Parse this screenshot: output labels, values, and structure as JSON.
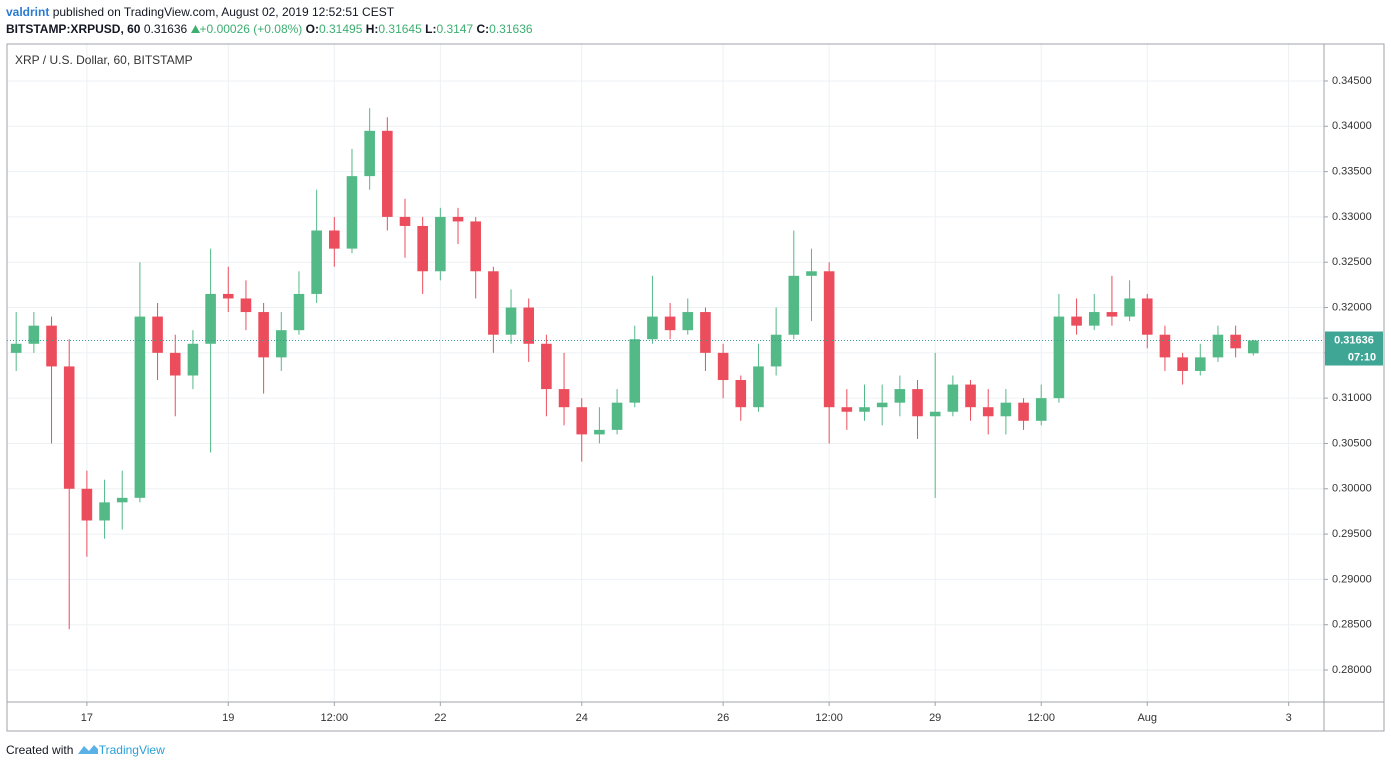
{
  "header": {
    "author": "valdrint",
    "published": "published on TradingView.com, August 02, 2019 12:52:51 CEST",
    "symbol": "BITSTAMP:XRPUSD, 60",
    "change": "+0.00026 (+0.08%)",
    "o_label": "O:",
    "h_label": "H:",
    "l_label": "L:",
    "c_label": "C:"
  },
  "chart_data": {
    "type": "candlestick",
    "title": "XRP / U.S. Dollar, 60, BITSTAMP",
    "countdown": "07:10",
    "up_color": "#53b987",
    "down_color": "#eb4d5c",
    "grid": true,
    "x": [
      16.0,
      16.25,
      16.5,
      16.75,
      17.0,
      17.25,
      17.5,
      17.75,
      18.0,
      18.25,
      18.5,
      18.75,
      19.0,
      19.25,
      19.5,
      19.75,
      20.0,
      20.25,
      20.5,
      20.75,
      21.0,
      21.25,
      21.5,
      21.75,
      22.0,
      22.25,
      22.5,
      22.75,
      23.0,
      23.25,
      23.5,
      23.75,
      24.0,
      24.25,
      24.5,
      24.75,
      25.0,
      25.25,
      25.5,
      25.75,
      26.0,
      26.25,
      26.5,
      26.75,
      27.0,
      27.25,
      27.5,
      27.75,
      28.0,
      28.25,
      28.5,
      28.75,
      29.0,
      29.25,
      29.5,
      29.75,
      30.0,
      30.25,
      30.5,
      30.75,
      31.0,
      31.25,
      31.5,
      31.75,
      32.0,
      32.25,
      32.5,
      32.75,
      33.0,
      33.25,
      33.5
    ],
    "open": [
      0.315,
      0.316,
      0.318,
      0.3135,
      0.3,
      0.2965,
      0.2985,
      0.299,
      0.319,
      0.315,
      0.3125,
      0.316,
      0.3215,
      0.321,
      0.3195,
      0.3145,
      0.3175,
      0.3215,
      0.3285,
      0.3265,
      0.3345,
      0.3395,
      0.33,
      0.329,
      0.324,
      0.33,
      0.3295,
      0.324,
      0.317,
      0.32,
      0.316,
      0.311,
      0.309,
      0.306,
      0.3065,
      0.3095,
      0.3165,
      0.319,
      0.3175,
      0.3195,
      0.315,
      0.312,
      0.309,
      0.3135,
      0.317,
      0.3235,
      0.324,
      0.309,
      0.3085,
      0.309,
      0.3095,
      0.311,
      0.308,
      0.3085,
      0.3115,
      0.309,
      0.308,
      0.3095,
      0.3075,
      0.31,
      0.319,
      0.318,
      0.3195,
      0.319,
      0.321,
      0.317,
      0.3145,
      0.313,
      0.3145,
      0.317,
      0.31495
    ],
    "high": [
      0.3195,
      0.3195,
      0.319,
      0.3165,
      0.302,
      0.301,
      0.302,
      0.325,
      0.3205,
      0.317,
      0.3175,
      0.3265,
      0.3245,
      0.323,
      0.3205,
      0.3195,
      0.324,
      0.333,
      0.33,
      0.3375,
      0.342,
      0.341,
      0.332,
      0.33,
      0.331,
      0.331,
      0.33,
      0.3245,
      0.322,
      0.321,
      0.317,
      0.315,
      0.31,
      0.309,
      0.311,
      0.318,
      0.3235,
      0.3205,
      0.321,
      0.32,
      0.316,
      0.3125,
      0.316,
      0.32,
      0.3285,
      0.3265,
      0.325,
      0.311,
      0.3115,
      0.3115,
      0.3125,
      0.312,
      0.315,
      0.3125,
      0.312,
      0.311,
      0.311,
      0.31,
      0.3115,
      0.3215,
      0.321,
      0.3215,
      0.3235,
      0.323,
      0.3215,
      0.318,
      0.315,
      0.316,
      0.318,
      0.318,
      0.31645
    ],
    "low": [
      0.313,
      0.315,
      0.305,
      0.2845,
      0.2925,
      0.2945,
      0.2955,
      0.2985,
      0.312,
      0.308,
      0.311,
      0.304,
      0.3195,
      0.3175,
      0.3105,
      0.313,
      0.317,
      0.3205,
      0.3245,
      0.326,
      0.333,
      0.3285,
      0.3255,
      0.3215,
      0.323,
      0.327,
      0.321,
      0.315,
      0.316,
      0.314,
      0.308,
      0.307,
      0.303,
      0.305,
      0.306,
      0.309,
      0.316,
      0.3165,
      0.317,
      0.313,
      0.31,
      0.3075,
      0.3085,
      0.3125,
      0.3165,
      0.3185,
      0.305,
      0.3065,
      0.3075,
      0.307,
      0.308,
      0.3055,
      0.299,
      0.308,
      0.3075,
      0.306,
      0.306,
      0.3065,
      0.307,
      0.3095,
      0.317,
      0.3175,
      0.318,
      0.3185,
      0.3155,
      0.313,
      0.3115,
      0.3125,
      0.314,
      0.3145,
      0.3147
    ],
    "close": [
      0.316,
      0.318,
      0.3135,
      0.3,
      0.2965,
      0.2985,
      0.299,
      0.319,
      0.315,
      0.3125,
      0.316,
      0.3215,
      0.321,
      0.3195,
      0.3145,
      0.3175,
      0.3215,
      0.3285,
      0.3265,
      0.3345,
      0.3395,
      0.33,
      0.329,
      0.324,
      0.33,
      0.3295,
      0.324,
      0.317,
      0.32,
      0.316,
      0.311,
      0.309,
      0.306,
      0.3065,
      0.3095,
      0.3165,
      0.319,
      0.3175,
      0.3195,
      0.315,
      0.312,
      0.309,
      0.3135,
      0.317,
      0.3235,
      0.324,
      0.309,
      0.3085,
      0.309,
      0.3095,
      0.311,
      0.308,
      0.3085,
      0.3115,
      0.309,
      0.308,
      0.3095,
      0.3075,
      0.31,
      0.319,
      0.318,
      0.3195,
      0.319,
      0.321,
      0.317,
      0.3145,
      0.313,
      0.3145,
      0.317,
      0.3155,
      0.31636
    ],
    "xlim": [
      15.87,
      34.5
    ],
    "xticks": [
      17,
      19,
      {
        "value": 20.5,
        "label": "12:00"
      },
      22,
      24,
      26,
      {
        "value": 27.5,
        "label": "12:00"
      },
      29,
      {
        "value": 30.5,
        "label": "12:00"
      },
      {
        "value": 32,
        "label": "Aug"
      },
      {
        "value": 34,
        "label": "3"
      }
    ],
    "ylim": [
      0.27647,
      0.34908
    ],
    "yticks": [
      {
        "value": 0.28,
        "label": "0.28000"
      },
      {
        "value": 0.285,
        "label": "0.28500"
      },
      {
        "value": 0.29,
        "label": "0.29000"
      },
      {
        "value": 0.295,
        "label": "0.29500"
      },
      {
        "value": 0.3,
        "label": "0.30000"
      },
      {
        "value": 0.305,
        "label": "0.30500"
      },
      {
        "value": 0.31,
        "label": "0.31000"
      },
      {
        "value": 0.315,
        "label": "0.31500"
      },
      {
        "value": 0.32,
        "label": "0.32000"
      },
      {
        "value": 0.325,
        "label": "0.32500"
      },
      {
        "value": 0.33,
        "label": "0.33000"
      },
      {
        "value": 0.335,
        "label": "0.33500"
      },
      {
        "value": 0.34,
        "label": "0.34000"
      },
      {
        "value": 0.345,
        "label": "0.34500"
      }
    ]
  },
  "footer": {
    "created": "Created with",
    "brand": "TradingView"
  }
}
